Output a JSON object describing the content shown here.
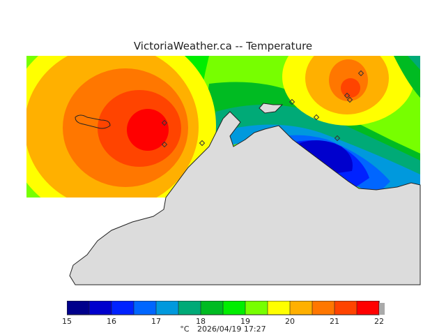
{
  "title": "VictoriaWeather.ca -- Temperature",
  "legend": {
    "unit": "°C",
    "timestamp": "2026/04/19 17:27",
    "range": [
      15,
      22
    ],
    "step": 0.5,
    "tick_labels": [
      "15",
      "16",
      "17",
      "18",
      "19",
      "20",
      "21",
      "22"
    ],
    "colors": [
      "#00008b",
      "#0000cd",
      "#0022ff",
      "#0066ff",
      "#0099dd",
      "#00aa77",
      "#00bb22",
      "#00ee00",
      "#77ff00",
      "#ffff00",
      "#ffb000",
      "#ff7700",
      "#ff4400",
      "#ff0000"
    ]
  },
  "colors": {
    "land": "#dcdcdc",
    "coast": "#222222"
  },
  "stations": [
    {
      "temp": 21.5
    },
    {
      "temp": 21.5
    },
    {
      "temp": 18.0
    },
    {
      "temp": 18.0
    },
    {
      "temp": 16.5
    },
    {
      "temp": 15.5
    },
    {
      "temp": 21.0
    },
    {
      "temp": 20.5
    },
    {
      "temp": 20.5
    }
  ]
}
